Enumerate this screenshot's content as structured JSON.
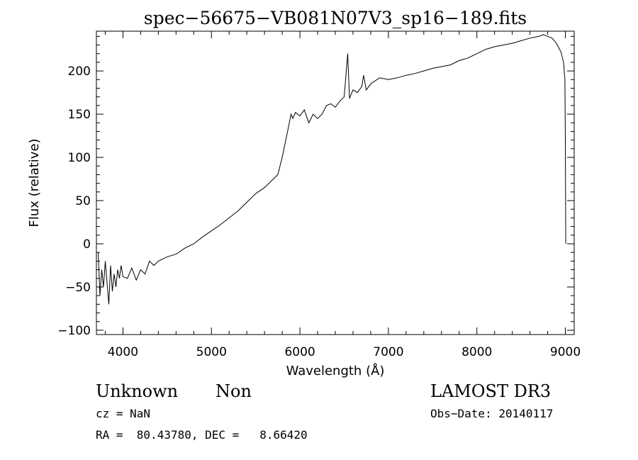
{
  "chart_data": {
    "type": "line",
    "title": "spec−56675−VB081N07V3_sp16−189.fits",
    "xlabel": "Wavelength (Å)",
    "ylabel": "Flux (relative)",
    "xlim": [
      3700,
      9100
    ],
    "ylim": [
      -105,
      246
    ],
    "xticks": [
      4000,
      5000,
      6000,
      7000,
      8000,
      9000
    ],
    "yticks": [
      -100,
      -50,
      0,
      50,
      100,
      150,
      200
    ],
    "xtick_labels": [
      "4000",
      "5000",
      "6000",
      "7000",
      "8000",
      "9000"
    ],
    "ytick_labels": [
      "−100",
      "−50",
      "0",
      "50",
      "100",
      "150",
      "200"
    ],
    "grid": false,
    "series": [
      {
        "name": "flux",
        "x": [
          3720,
          3740,
          3760,
          3780,
          3800,
          3820,
          3840,
          3860,
          3880,
          3900,
          3920,
          3940,
          3960,
          3980,
          4000,
          4050,
          4100,
          4150,
          4200,
          4250,
          4300,
          4350,
          4400,
          4500,
          4600,
          4700,
          4800,
          4900,
          5000,
          5100,
          5200,
          5300,
          5400,
          5500,
          5600,
          5700,
          5750,
          5800,
          5850,
          5880,
          5900,
          5920,
          5950,
          6000,
          6050,
          6100,
          6150,
          6200,
          6250,
          6300,
          6350,
          6400,
          6450,
          6500,
          6540,
          6560,
          6575,
          6600,
          6650,
          6700,
          6720,
          6750,
          6800,
          6900,
          7000,
          7100,
          7200,
          7300,
          7400,
          7500,
          7600,
          7700,
          7800,
          7900,
          8000,
          8100,
          8200,
          8300,
          8400,
          8500,
          8600,
          8700,
          8750,
          8800,
          8850,
          8900,
          8950,
          8980,
          8995,
          9000,
          9005
        ],
        "y": [
          -10,
          -60,
          -30,
          -50,
          -20,
          -45,
          -70,
          -25,
          -55,
          -35,
          -50,
          -30,
          -40,
          -25,
          -38,
          -40,
          -28,
          -42,
          -30,
          -35,
          -20,
          -25,
          -20,
          -15,
          -12,
          -5,
          0,
          8,
          15,
          22,
          30,
          38,
          48,
          58,
          65,
          75,
          80,
          100,
          125,
          140,
          150,
          145,
          152,
          148,
          155,
          140,
          150,
          145,
          150,
          160,
          162,
          158,
          165,
          170,
          220,
          168,
          172,
          178,
          175,
          182,
          195,
          178,
          185,
          192,
          190,
          192,
          195,
          197,
          200,
          203,
          205,
          207,
          212,
          215,
          220,
          225,
          228,
          230,
          232,
          235,
          238,
          240,
          242,
          240,
          238,
          232,
          222,
          210,
          190,
          120,
          0
        ]
      }
    ]
  },
  "info": {
    "object_class": "Unknown",
    "subclass": "Non",
    "survey": "LAMOST DR3",
    "redshift": "cz = NaN",
    "obs_date": "Obs−Date: 20140117",
    "coords": "RA =  80.43780, DEC =   8.66420"
  }
}
